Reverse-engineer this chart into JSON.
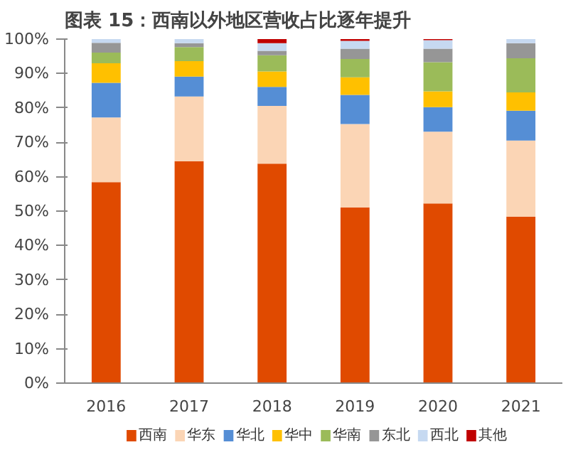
{
  "chart_data": {
    "type": "bar",
    "title": "图表 15：西南以外地区营收占比逐年提升",
    "stacked": true,
    "categories": [
      "2016",
      "2017",
      "2018",
      "2019",
      "2020",
      "2021"
    ],
    "series": [
      {
        "name": "西南",
        "color": "#e04a00",
        "values": [
          58.4,
          64.5,
          63.8,
          51.1,
          52.2,
          48.4
        ]
      },
      {
        "name": "华东",
        "color": "#fbd5b5",
        "values": [
          18.8,
          18.8,
          16.8,
          24.2,
          20.9,
          22.1
        ]
      },
      {
        "name": "华北",
        "color": "#558ed5",
        "values": [
          10.1,
          5.8,
          5.5,
          8.5,
          7.1,
          8.7
        ]
      },
      {
        "name": "华中",
        "color": "#ffc000",
        "values": [
          5.7,
          4.5,
          4.5,
          5.1,
          4.6,
          5.3
        ]
      },
      {
        "name": "华南",
        "color": "#9bbb59",
        "values": [
          3.1,
          4.1,
          4.7,
          5.3,
          8.5,
          9.9
        ]
      },
      {
        "name": "东北",
        "color": "#969696",
        "values": [
          2.8,
          1.1,
          1.3,
          3.0,
          3.9,
          4.4
        ]
      },
      {
        "name": "西北",
        "color": "#c6d9f1",
        "values": [
          1.1,
          1.2,
          2.2,
          2.3,
          2.5,
          1.2
        ]
      },
      {
        "name": "其他",
        "color": "#c00000",
        "values": [
          0,
          0,
          1.2,
          0.5,
          0.3,
          0
        ]
      }
    ],
    "ylim": [
      0,
      100
    ],
    "yticks": [
      {
        "value": 0,
        "label": "0%"
      },
      {
        "value": 10,
        "label": "10%"
      },
      {
        "value": 20,
        "label": "20%"
      },
      {
        "value": 30,
        "label": "30%"
      },
      {
        "value": 40,
        "label": "40%"
      },
      {
        "value": 50,
        "label": "50%"
      },
      {
        "value": 60,
        "label": "60%"
      },
      {
        "value": 70,
        "label": "70%"
      },
      {
        "value": 80,
        "label": "80%"
      },
      {
        "value": 90,
        "label": "90%"
      },
      {
        "value": 100,
        "label": "100%"
      }
    ],
    "legend": "bottom",
    "grid": false
  }
}
